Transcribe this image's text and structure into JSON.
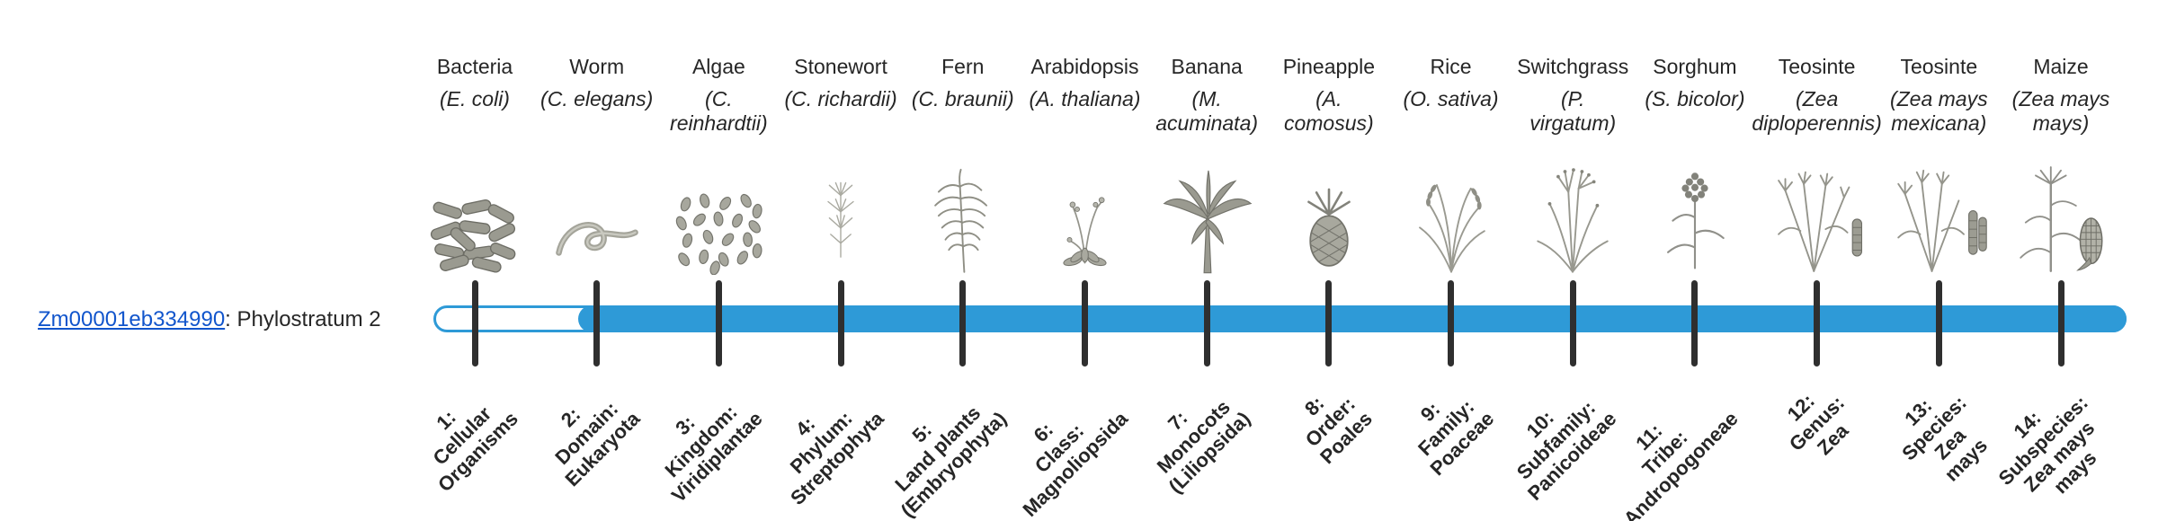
{
  "colors": {
    "bar": "#2e9ad7",
    "bar_track": "#ffffff",
    "tick": "#2f2f2f",
    "link": "#1155cc",
    "text": "#262626"
  },
  "gene": {
    "id": "Zm00001eb334990",
    "suffix": ": Phylostratum 2",
    "phylostratum": 2
  },
  "timeline": {
    "columns": [
      {
        "name": "Bacteria",
        "scientific": "(E. coli)",
        "icon": "bacteria-icon",
        "stratum": "1:\nCellular\nOrganisms"
      },
      {
        "name": "Worm",
        "scientific": "(C. elegans)",
        "icon": "worm-icon",
        "stratum": "2:\nDomain:\nEukaryota"
      },
      {
        "name": "Algae",
        "scientific": "(C.\nreinhardtii)",
        "icon": "algae-icon",
        "stratum": "3:\nKingdom:\nViridiplantae"
      },
      {
        "name": "Stonewort",
        "scientific": "(C. richardii)",
        "icon": "stonewort-icon",
        "stratum": "4:\nPhylum:\nStreptophyta"
      },
      {
        "name": "Fern",
        "scientific": "(C. braunii)",
        "icon": "fern-icon",
        "stratum": "5:\nLand plants\n(Embryophyta)"
      },
      {
        "name": "Arabidopsis",
        "scientific": "(A. thaliana)",
        "icon": "arabidopsis-icon",
        "stratum": "6:\nClass:\nMagnoliopsida"
      },
      {
        "name": "Banana",
        "scientific": "(M.\nacuminata)",
        "icon": "banana-icon",
        "stratum": "7:\nMonocots\n(Liliopsida)"
      },
      {
        "name": "Pineapple",
        "scientific": "(A.\ncomosus)",
        "icon": "pineapple-icon",
        "stratum": "8:\nOrder:\nPoales"
      },
      {
        "name": "Rice",
        "scientific": "(O. sativa)",
        "icon": "rice-icon",
        "stratum": "9:\nFamily:\nPoaceae"
      },
      {
        "name": "Switchgrass",
        "scientific": "(P.\nvirgatum)",
        "icon": "switchgrass-icon",
        "stratum": "10:\nSubfamily:\nPanicoideae"
      },
      {
        "name": "Sorghum",
        "scientific": "(S. bicolor)",
        "icon": "sorghum-icon",
        "stratum": "11:\nTribe:\nAndropogoneae"
      },
      {
        "name": "Teosinte",
        "scientific": "(Zea\ndiploperennis)",
        "icon": "teosinte-icon",
        "stratum": "12:\nGenus:\nZea"
      },
      {
        "name": "Teosinte",
        "scientific": "(Zea mays\nmexicana)",
        "icon": "teosinte2-icon",
        "stratum": "13:\nSpecies:\nZea\nmays"
      },
      {
        "name": "Maize",
        "scientific": "(Zea mays\nmays)",
        "icon": "maize-icon",
        "stratum": "14:\nSubspecies:\nZea mays\nmays"
      }
    ]
  }
}
